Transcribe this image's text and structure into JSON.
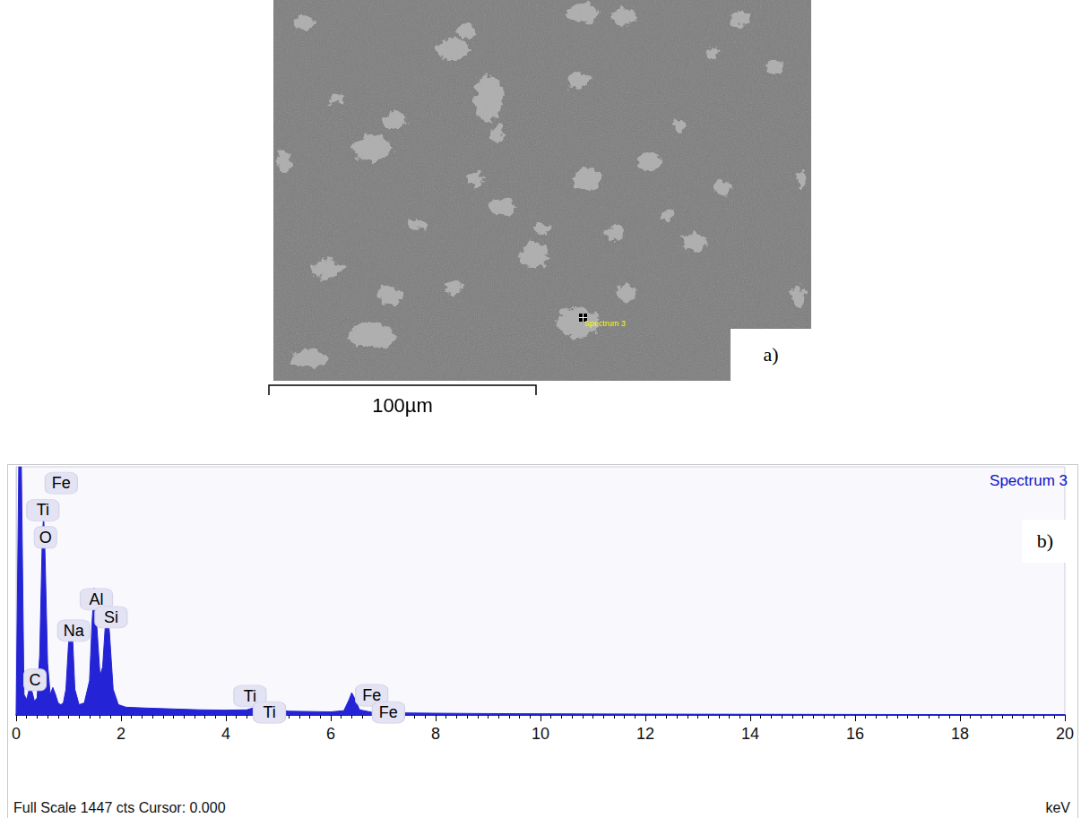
{
  "image_panel": {
    "label": "a)",
    "scale_bar": "100µm",
    "marker_label": "Spectrum 3"
  },
  "chart_data": {
    "type": "area",
    "title": "Spectrum 3",
    "panel_label": "b)",
    "x_label": "keV",
    "caption": "Full Scale 1447 cts Cursor: 0.000",
    "color": "#2424d6",
    "x": [
      0,
      0.05,
      0.1,
      0.15,
      0.2,
      0.25,
      0.3,
      0.35,
      0.4,
      0.45,
      0.5,
      0.525,
      0.55,
      0.6,
      0.65,
      0.7,
      0.75,
      0.8,
      0.85,
      0.9,
      0.95,
      1.0,
      1.04,
      1.08,
      1.12,
      1.2,
      1.3,
      1.4,
      1.45,
      1.49,
      1.53,
      1.6,
      1.65,
      1.7,
      1.74,
      1.78,
      1.85,
      1.95,
      2.1,
      2.5,
      3.0,
      3.5,
      4.0,
      4.4,
      4.51,
      4.6,
      4.93,
      5.2,
      5.6,
      6.0,
      6.25,
      6.35,
      6.4,
      6.45,
      6.55,
      6.8,
      7.0,
      7.06,
      7.12,
      7.4,
      8,
      9,
      10,
      12,
      14,
      16,
      18,
      20
    ],
    "values": [
      0,
      1447,
      1447,
      120,
      90,
      150,
      140,
      80,
      100,
      350,
      1050,
      1160,
      950,
      300,
      120,
      160,
      120,
      70,
      60,
      70,
      150,
      420,
      550,
      430,
      150,
      60,
      70,
      200,
      550,
      740,
      560,
      230,
      280,
      520,
      600,
      480,
      150,
      60,
      45,
      40,
      35,
      30,
      28,
      30,
      40,
      28,
      30,
      22,
      20,
      18,
      25,
      90,
      130,
      100,
      30,
      15,
      18,
      28,
      18,
      12,
      10,
      8,
      7,
      5,
      4,
      3,
      2,
      2
    ],
    "xlim": [
      0,
      20
    ],
    "xticks": [
      0,
      2,
      4,
      6,
      8,
      10,
      12,
      14,
      16,
      18,
      20
    ],
    "ylim": [
      0,
      1447
    ],
    "tick_labels": "x",
    "grid": false,
    "annotations": [
      {
        "text": "Fe",
        "x": 0.86,
        "y": 1352
      },
      {
        "text": "Ti",
        "x": 0.51,
        "y": 1194
      },
      {
        "text": "O",
        "x": 0.56,
        "y": 1036
      },
      {
        "text": "C",
        "x": 0.36,
        "y": 205
      },
      {
        "text": "Na",
        "x": 1.1,
        "y": 492
      },
      {
        "text": "Al",
        "x": 1.53,
        "y": 675
      },
      {
        "text": "Si",
        "x": 1.81,
        "y": 570
      },
      {
        "text": "Ti",
        "x": 4.46,
        "y": 110
      },
      {
        "text": "Ti",
        "x": 4.83,
        "y": 15
      },
      {
        "text": "Fe",
        "x": 6.78,
        "y": 115
      },
      {
        "text": "Fe",
        "x": 7.1,
        "y": 15
      }
    ]
  }
}
